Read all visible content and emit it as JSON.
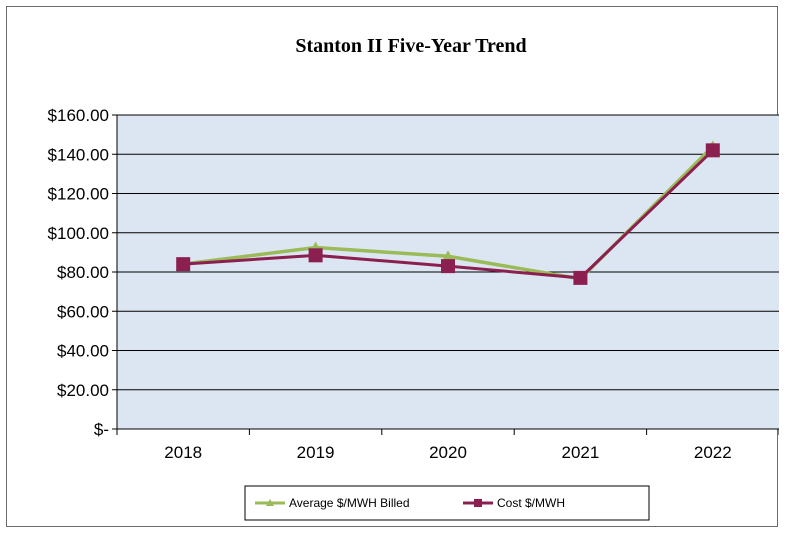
{
  "chart_data": {
    "type": "line",
    "title": "Stanton II Five-Year Trend",
    "xlabel": "",
    "ylabel": "",
    "categories": [
      "2018",
      "2019",
      "2020",
      "2021",
      "2022"
    ],
    "ylim": [
      0,
      160
    ],
    "yticks": [
      0,
      20,
      40,
      60,
      80,
      100,
      120,
      140,
      160
    ],
    "ytick_labels": [
      "$-",
      "$20.00",
      "$40.00",
      "$60.00",
      "$80.00",
      "$100.00",
      "$120.00",
      "$140.00",
      "$160.00"
    ],
    "grid": true,
    "plot_background": "#dce6f2",
    "legend_position": "bottom",
    "series": [
      {
        "name": "Average $/MWH Billed",
        "values": [
          84,
          92.5,
          88,
          76.5,
          144
        ],
        "color": "#9bbb59"
      },
      {
        "name": "Cost $/MWH",
        "values": [
          84,
          88.5,
          83,
          77,
          142
        ],
        "color": "#8b2050"
      }
    ]
  }
}
